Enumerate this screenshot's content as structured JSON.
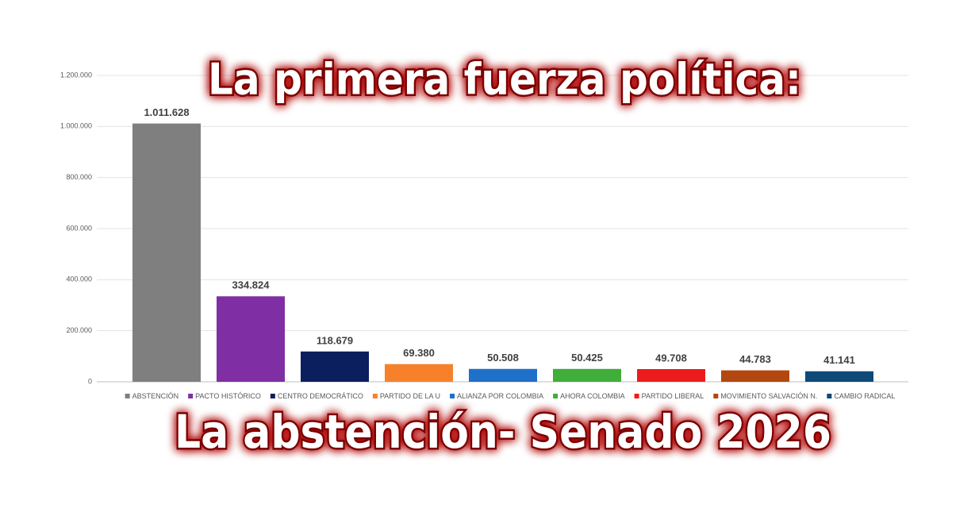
{
  "chart_data": {
    "type": "bar",
    "title": "La primera fuerza política:",
    "subtitle": "La abstención- Senado 2026",
    "categories": [
      "ABSTENCIÓN",
      "PACTO HISTÓRICO",
      "CENTRO DEMOCRÁTICO",
      "PARTIDO DE LA U",
      "ALIANZA POR COLOMBIA",
      "AHORA COLOMBIA",
      "PARTIDO LIBERAL",
      "MOVIMIENTO SALVACIÓN N.",
      "CAMBIO RADICAL"
    ],
    "values": [
      1011628,
      334824,
      118679,
      69380,
      50508,
      50425,
      49708,
      44783,
      41141
    ],
    "value_labels": [
      "1.011.628",
      "334.824",
      "118.679",
      "69.380",
      "50.508",
      "50.425",
      "49.708",
      "44.783",
      "41.141"
    ],
    "colors": [
      "#7f7f7f",
      "#7f2fa3",
      "#0b1f5e",
      "#f7812a",
      "#1f70c8",
      "#3fae3a",
      "#ec1c1c",
      "#b4470f",
      "#0d4a78"
    ],
    "ylim": [
      0,
      1200000
    ],
    "yticks": [
      0,
      {
        "value": 200000,
        "label": "200.000"
      },
      {
        "value": 400000,
        "label": "400.000"
      },
      {
        "value": 600000,
        "label": "600.000"
      },
      {
        "value": 800000,
        "label": "800.000"
      },
      {
        "value": 1000000,
        "label": "1.000.000"
      },
      {
        "value": 1200000,
        "label": "1.200.000"
      }
    ],
    "grid": true,
    "legend": "bottom"
  }
}
